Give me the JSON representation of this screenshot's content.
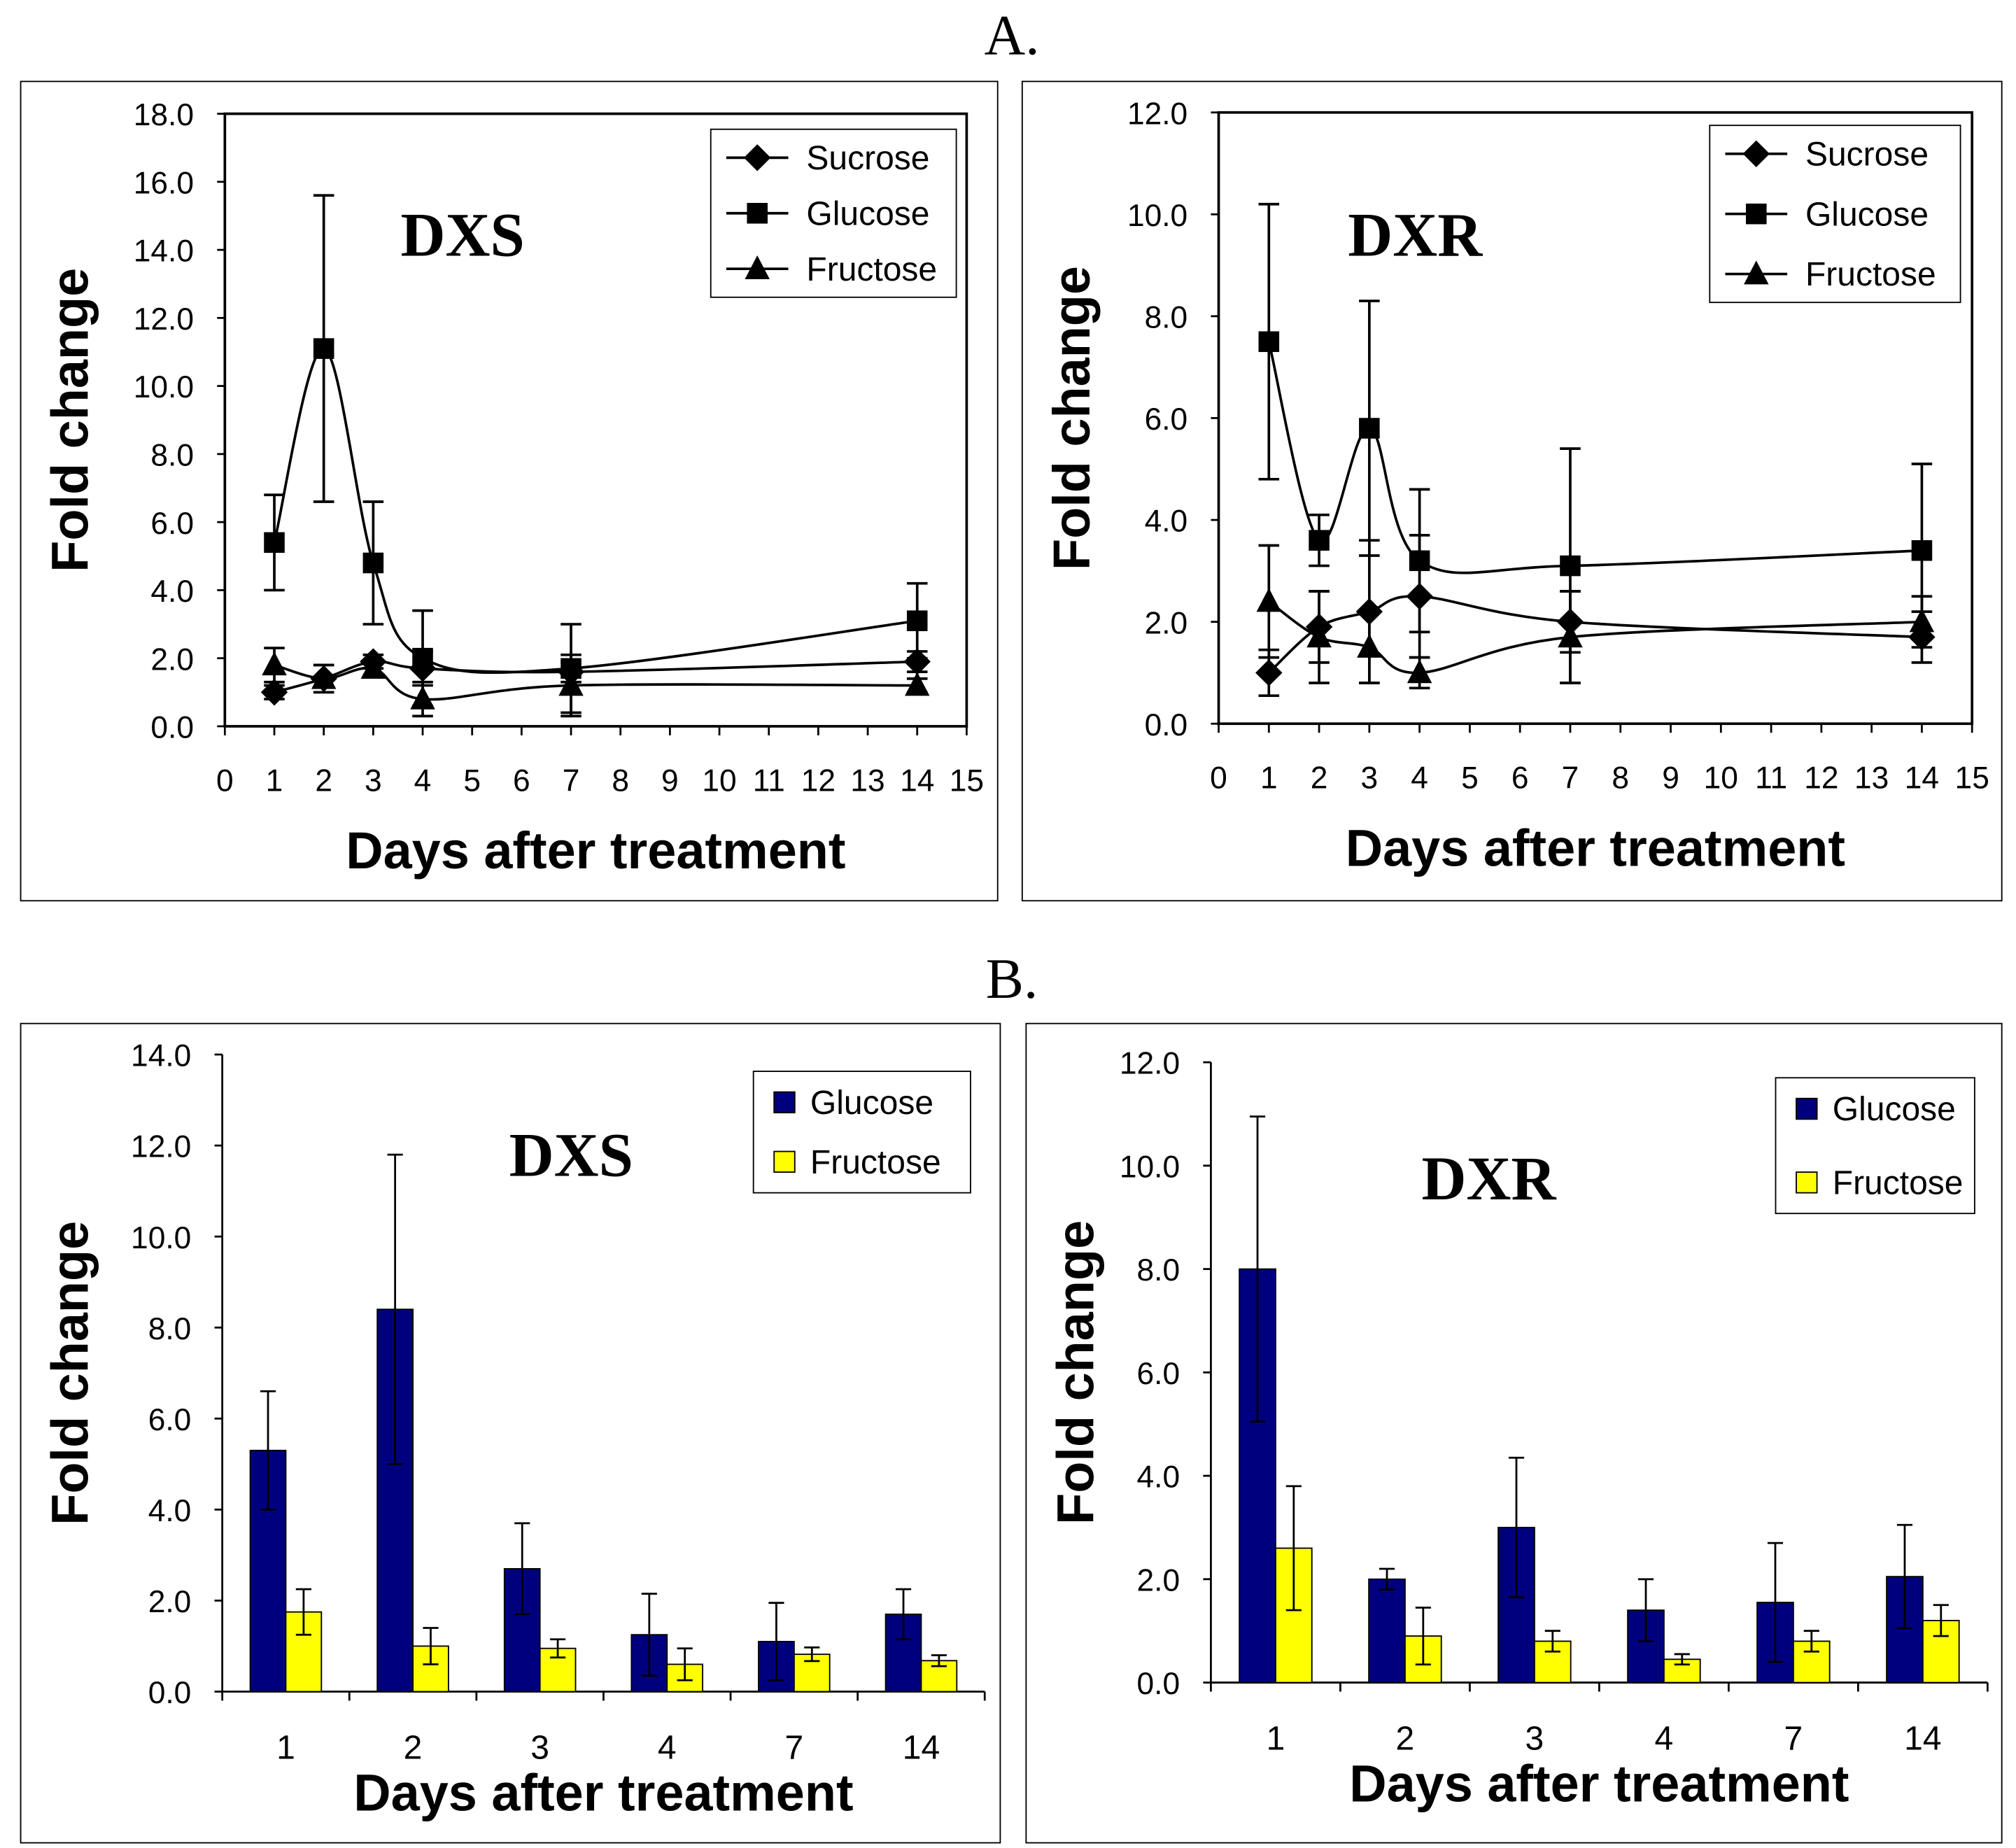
{
  "section_labels": [
    "A.",
    "B."
  ],
  "chart_data": [
    {
      "type": "line",
      "title": "DXS",
      "xlabel": "Days after treatment",
      "ylabel": "Fold change",
      "xlim": [
        0,
        15
      ],
      "ylim": [
        0,
        18
      ],
      "x_ticks": [
        "0",
        "1",
        "2",
        "3",
        "4",
        "5",
        "6",
        "7",
        "8",
        "9",
        "10",
        "11",
        "12",
        "13",
        "14",
        "15"
      ],
      "y_ticks": [
        "0.0",
        "2.0",
        "4.0",
        "6.0",
        "8.0",
        "10.0",
        "12.0",
        "14.0",
        "16.0",
        "18.0"
      ],
      "legend": "top-right",
      "x": [
        1,
        2,
        3,
        4,
        7,
        14
      ],
      "series": [
        {
          "name": "Sucrose",
          "marker": "diamond",
          "values": [
            1.0,
            1.4,
            1.9,
            1.7,
            1.6,
            1.9
          ],
          "errors": [
            0.2,
            0.4,
            0.2,
            0.5,
            0.3,
            0.3
          ]
        },
        {
          "name": "Glucose",
          "marker": "square",
          "values": [
            5.4,
            11.1,
            4.8,
            2.0,
            1.7,
            3.1
          ],
          "errors": [
            1.4,
            4.5,
            1.8,
            1.4,
            1.3,
            1.1
          ]
        },
        {
          "name": "Fructose",
          "marker": "triangle",
          "values": [
            1.8,
            1.4,
            1.7,
            0.8,
            1.2,
            1.2
          ],
          "errors": [
            0.5,
            0.4,
            0.2,
            0.5,
            0.9,
            0.2
          ]
        }
      ]
    },
    {
      "type": "line",
      "title": "DXR",
      "xlabel": "Days after treatment",
      "ylabel": "Fold change",
      "xlim": [
        0,
        15
      ],
      "ylim": [
        0,
        12
      ],
      "x_ticks": [
        "0",
        "1",
        "2",
        "3",
        "4",
        "5",
        "6",
        "7",
        "8",
        "9",
        "10",
        "11",
        "12",
        "13",
        "14",
        "15"
      ],
      "y_ticks": [
        "0.0",
        "2.0",
        "4.0",
        "6.0",
        "8.0",
        "10.0",
        "12.0"
      ],
      "legend": "top-right",
      "x": [
        1,
        2,
        3,
        4,
        7,
        14
      ],
      "series": [
        {
          "name": "Sucrose",
          "marker": "diamond",
          "values": [
            1.0,
            1.9,
            2.2,
            2.5,
            2.0,
            1.7
          ],
          "errors": [
            0.45,
            0.7,
            1.4,
            1.2,
            0.6,
            0.5
          ]
        },
        {
          "name": "Glucose",
          "marker": "square",
          "values": [
            7.5,
            3.6,
            5.8,
            3.2,
            3.1,
            3.4
          ],
          "errors": [
            2.7,
            0.5,
            2.5,
            1.4,
            2.3,
            1.7
          ]
        },
        {
          "name": "Fructose",
          "marker": "triangle",
          "values": [
            2.4,
            1.7,
            1.5,
            1.0,
            1.7,
            2.0
          ],
          "errors": [
            1.1,
            0.9,
            0.7,
            0.3,
            0.9,
            0.5
          ]
        }
      ]
    },
    {
      "type": "bar",
      "title": "DXS",
      "xlabel": "Days after treatment",
      "ylabel": "Fold change",
      "ylim": [
        0,
        14
      ],
      "y_ticks": [
        "0.0",
        "2.0",
        "4.0",
        "6.0",
        "8.0",
        "10.0",
        "12.0",
        "14.0"
      ],
      "legend": "top-right",
      "categories": [
        "1",
        "2",
        "3",
        "4",
        "7",
        "14"
      ],
      "series": [
        {
          "name": "Glucose",
          "color": "#00007f",
          "values": [
            5.3,
            8.4,
            2.7,
            1.25,
            1.1,
            1.7
          ],
          "errors": [
            1.3,
            3.4,
            1.0,
            0.9,
            0.85,
            0.55
          ]
        },
        {
          "name": "Fructose",
          "color": "#ffff00",
          "values": [
            1.75,
            1.0,
            0.95,
            0.6,
            0.82,
            0.68
          ],
          "errors": [
            0.5,
            0.4,
            0.2,
            0.35,
            0.15,
            0.12
          ]
        }
      ]
    },
    {
      "type": "bar",
      "title": "DXR",
      "xlabel": "Days after treatment",
      "ylabel": "Fold change",
      "ylim": [
        0,
        12
      ],
      "y_ticks": [
        "0.0",
        "2.0",
        "4.0",
        "6.0",
        "8.0",
        "10.0",
        "12.0"
      ],
      "legend": "top-right",
      "categories": [
        "1",
        "2",
        "3",
        "4",
        "7",
        "14"
      ],
      "series": [
        {
          "name": "Glucose",
          "color": "#00007f",
          "values": [
            8.0,
            2.0,
            3.0,
            1.4,
            1.55,
            2.05
          ],
          "errors": [
            2.95,
            0.2,
            1.35,
            0.6,
            1.15,
            1.0
          ]
        },
        {
          "name": "Fructose",
          "color": "#ffff00",
          "values": [
            2.6,
            0.9,
            0.8,
            0.45,
            0.8,
            1.2
          ],
          "errors": [
            1.2,
            0.55,
            0.2,
            0.1,
            0.2,
            0.3
          ]
        }
      ]
    }
  ]
}
